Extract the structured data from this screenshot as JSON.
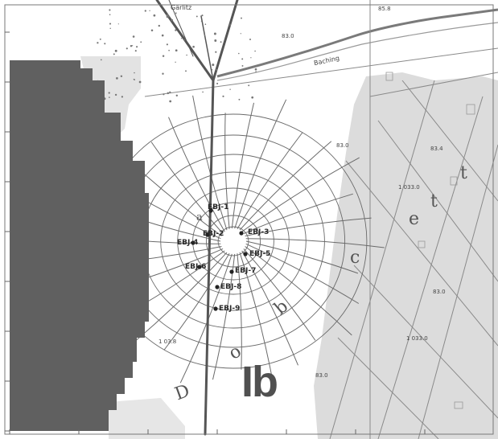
{
  "map": {
    "zone_label": "Ib",
    "top_label": "Gärlitz",
    "road_label": "Baching",
    "well_labels": [
      "EBJ-1",
      "EBJ-2",
      "EBJ-3",
      "EBJ-4",
      "EBJ-5",
      "EBJ-6",
      "EBJ-7",
      "EBJ-8",
      "EBJ-9"
    ],
    "spot_heights": [
      "85.8",
      "83.0",
      "83.0",
      "83.4",
      "83.0",
      "1 033.0",
      "1 033.0",
      "1 03.8",
      "83.0"
    ],
    "letters": [
      "t",
      "e",
      "t",
      "c",
      "D",
      "o",
      "b",
      "a"
    ],
    "colors": {
      "masked_area": "#606060",
      "wetland_fill": "#dddddd",
      "contour_lines": "#6a6a6a",
      "parcel_lines": "#7a7a7a",
      "road": "#555555"
    }
  }
}
